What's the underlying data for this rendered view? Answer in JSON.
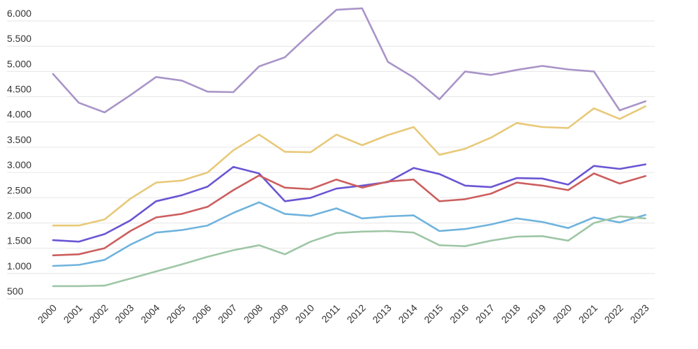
{
  "chart_data": {
    "type": "line",
    "title": "",
    "xlabel": "",
    "ylabel": "",
    "grid": true,
    "legend": "none",
    "ylim": [
      500,
      6000
    ],
    "yticks": [
      500,
      1000,
      1500,
      2000,
      2500,
      3000,
      3500,
      4000,
      4500,
      5000,
      5500,
      6000
    ],
    "ytick_labels": [
      "500",
      "1.000",
      "1.500",
      "2.000",
      "2.500",
      "3.000",
      "3.500",
      "4.000",
      "4.500",
      "5.000",
      "5.500",
      "6.000"
    ],
    "categories": [
      "2000",
      "2001",
      "2002",
      "2003",
      "2004",
      "2005",
      "2006",
      "2007",
      "2008",
      "2009",
      "2010",
      "2011",
      "2012",
      "2013",
      "2014",
      "2015",
      "2016",
      "2017",
      "2018",
      "2019",
      "2020",
      "2021",
      "2022",
      "2023"
    ],
    "series": [
      {
        "color": "#a994c8",
        "values": [
          4950,
          4380,
          4190,
          4530,
          4890,
          4820,
          4600,
          4590,
          5100,
          5280,
          5760,
          6220,
          6250,
          5190,
          4880,
          4450,
          5000,
          4930,
          5030,
          5110,
          5040,
          5000,
          4230,
          4410
        ]
      },
      {
        "color": "#e8c978",
        "values": [
          1950,
          1950,
          2070,
          2480,
          2800,
          2840,
          3000,
          3440,
          3750,
          3410,
          3400,
          3750,
          3540,
          3740,
          3900,
          3350,
          3470,
          3690,
          3980,
          3900,
          3880,
          4270,
          4060,
          4310
        ]
      },
      {
        "color": "#6a55d4",
        "values": [
          1660,
          1630,
          1780,
          2050,
          2430,
          2550,
          2720,
          3110,
          2980,
          2430,
          2500,
          2680,
          2740,
          2810,
          3090,
          2970,
          2740,
          2710,
          2890,
          2880,
          2760,
          3130,
          3070,
          3160
        ]
      },
      {
        "color": "#cc5e5e",
        "values": [
          1360,
          1380,
          1500,
          1840,
          2110,
          2180,
          2320,
          2650,
          2940,
          2700,
          2670,
          2860,
          2700,
          2820,
          2860,
          2430,
          2470,
          2580,
          2800,
          2740,
          2650,
          2980,
          2780,
          2930
        ]
      },
      {
        "color": "#6fb3dd",
        "values": [
          1150,
          1170,
          1270,
          1570,
          1810,
          1860,
          1950,
          2200,
          2410,
          2180,
          2140,
          2290,
          2090,
          2130,
          2150,
          1840,
          1880,
          1970,
          2090,
          2020,
          1900,
          2110,
          2010,
          2160
        ]
      },
      {
        "color": "#9ec6a6",
        "values": [
          750,
          750,
          760,
          900,
          1040,
          1180,
          1330,
          1460,
          1560,
          1380,
          1630,
          1800,
          1830,
          1840,
          1810,
          1560,
          1540,
          1650,
          1730,
          1740,
          1650,
          2000,
          2130,
          2090
        ]
      }
    ]
  }
}
